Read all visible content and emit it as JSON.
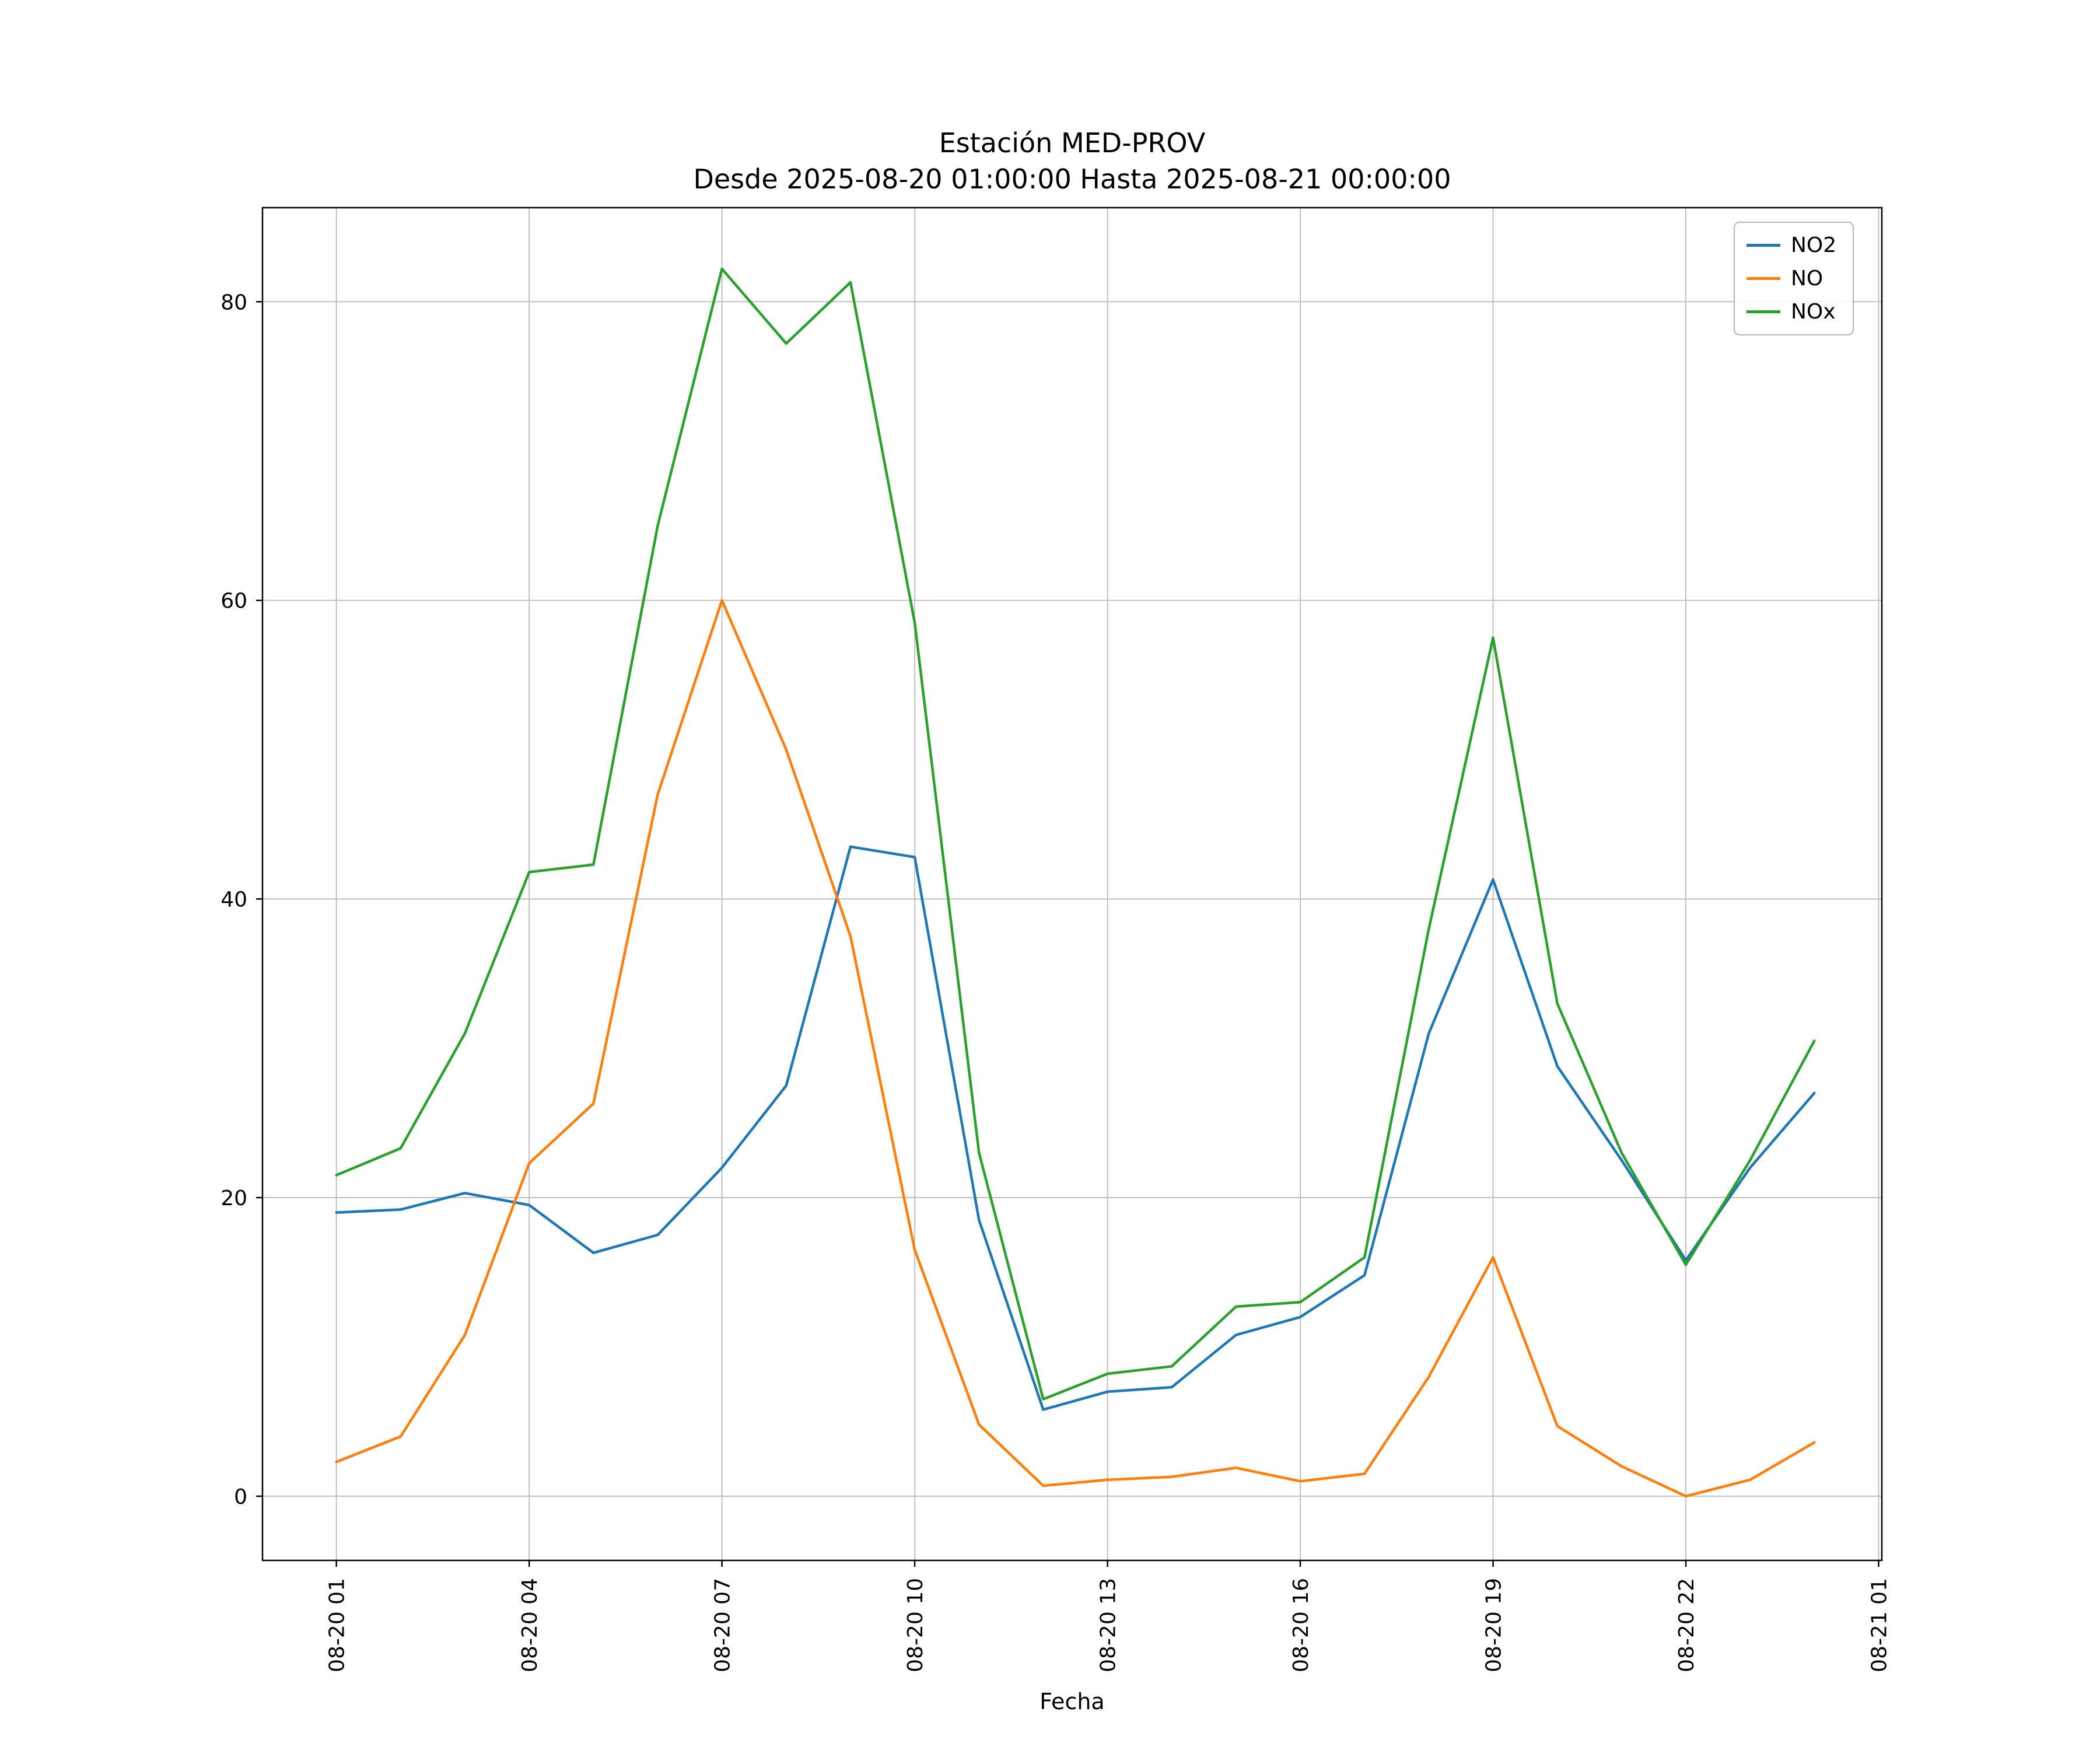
{
  "figure": {
    "title_line1": "Estación MED-PROV",
    "title_line2": "Desde 2025-08-20 01:00:00 Hasta 2025-08-21 00:00:00",
    "xlabel": "Fecha"
  },
  "chart_data": {
    "type": "line",
    "title": "Estación MED-PROV\nDesde 2025-08-20 01:00:00 Hasta 2025-08-21 00:00:00",
    "xlabel": "Fecha",
    "ylabel": "",
    "grid": true,
    "legend_position": "upper right",
    "x": [
      1,
      2,
      3,
      4,
      5,
      6,
      7,
      8,
      9,
      10,
      11,
      12,
      13,
      14,
      15,
      16,
      17,
      18,
      19,
      20,
      21,
      22,
      23,
      24
    ],
    "series": [
      {
        "name": "NO2",
        "color": "#1f77b4",
        "values": [
          19.0,
          19.2,
          20.3,
          19.5,
          16.3,
          17.5,
          22.0,
          27.5,
          43.5,
          42.8,
          18.5,
          5.8,
          7.0,
          7.3,
          10.8,
          12.0,
          14.8,
          31.0,
          41.3,
          28.8,
          22.5,
          15.8,
          22.0,
          27.0
        ]
      },
      {
        "name": "NO",
        "color": "#ff7f0e",
        "values": [
          2.3,
          4.0,
          10.8,
          22.3,
          26.3,
          47.0,
          60.0,
          50.0,
          37.5,
          16.5,
          4.8,
          0.7,
          1.1,
          1.3,
          1.9,
          1.0,
          1.5,
          8.0,
          16.0,
          4.7,
          2.0,
          0.0,
          1.1,
          3.6
        ]
      },
      {
        "name": "NOx",
        "color": "#2ca02c",
        "values": [
          21.5,
          23.3,
          31.0,
          41.8,
          42.3,
          65.0,
          82.2,
          77.2,
          81.3,
          58.5,
          23.0,
          6.5,
          8.2,
          8.7,
          12.7,
          13.0,
          16.0,
          38.0,
          57.5,
          33.0,
          23.0,
          15.5,
          22.5,
          30.5
        ]
      }
    ],
    "x_ticks": {
      "positions": [
        1,
        4,
        7,
        10,
        13,
        16,
        19,
        22,
        25
      ],
      "labels": [
        "08-20 01",
        "08-20 04",
        "08-20 07",
        "08-20 10",
        "08-20 13",
        "08-20 16",
        "08-20 19",
        "08-20 22",
        "08-21 01"
      ]
    },
    "y_ticks": [
      0,
      20,
      40,
      60,
      80
    ],
    "xlim": [
      -0.15,
      25.05
    ],
    "ylim": [
      -4.3,
      86.3
    ],
    "colors": {
      "grid": "#c0c0c0",
      "axis": "#000000",
      "background": "#ffffff"
    }
  }
}
